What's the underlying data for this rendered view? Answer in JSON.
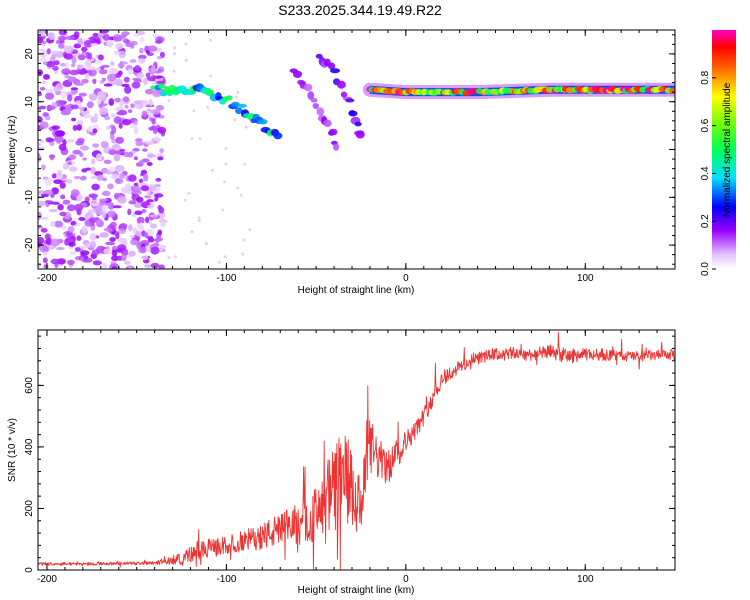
{
  "figure_title": "S233.2025.344.19.49.R22",
  "chart_data": [
    {
      "type": "heatmap",
      "title": "S233.2025.344.19.49.R22",
      "xlabel": "Height of straight line (km)",
      "ylabel": "Frequency (Hz)",
      "xlim": [
        -205,
        150
      ],
      "ylim": [
        -25,
        25
      ],
      "xticks": [
        -200,
        -100,
        0,
        100
      ],
      "yticks": [
        -20,
        -10,
        0,
        10,
        20
      ],
      "colorbar": {
        "label": "Normalized spectral amplitude",
        "range": [
          0.0,
          1.0
        ],
        "ticks": [
          "0.0",
          "0.2",
          "0.4",
          "0.6",
          "0.8"
        ],
        "tick_values": [
          0.0,
          0.2,
          0.4,
          0.6,
          0.8
        ]
      },
      "features": [
        {
          "name": "low-altitude noise cloud",
          "x_range": [
            -205,
            -135
          ],
          "y_range": [
            -25,
            25
          ],
          "amplitude": 0.12
        },
        {
          "name": "descending chirp",
          "points": [
            [
              -140,
              12.5
            ],
            [
              -125,
              12.5
            ],
            [
              -110,
              12
            ],
            [
              -100,
              10.5
            ],
            [
              -90,
              8
            ],
            [
              -80,
              5.5
            ],
            [
              -70,
              2
            ]
          ],
          "amplitude": 0.42
        },
        {
          "name": "ascending trace A",
          "points": [
            [
              -62,
              16
            ],
            [
              -55,
              13
            ],
            [
              -48,
              8
            ],
            [
              -42,
              4
            ],
            [
              -38,
              0
            ]
          ],
          "amplitude": 0.18
        },
        {
          "name": "ascending trace B",
          "points": [
            [
              -48,
              20
            ],
            [
              -40,
              16
            ],
            [
              -33,
              11
            ],
            [
              -28,
              6
            ],
            [
              -24,
              2
            ]
          ],
          "amplitude": 0.2
        },
        {
          "name": "steady carrier line",
          "points": [
            [
              -20,
              12.5
            ],
            [
              0,
              12
            ],
            [
              40,
              12
            ],
            [
              80,
              12.5
            ],
            [
              150,
              12.5
            ]
          ],
          "amplitude": 0.85
        }
      ]
    },
    {
      "type": "line",
      "xlabel": "Height of straight line (km)",
      "ylabel": "SNR (10 * v/v)",
      "xlim": [
        -205,
        150
      ],
      "ylim": [
        0,
        780
      ],
      "xticks": [
        -200,
        -100,
        0,
        100
      ],
      "yticks": [
        0,
        200,
        400,
        600
      ],
      "color": "#ee3333",
      "series": [
        {
          "name": "SNR",
          "x": [
            -205,
            -180,
            -150,
            -135,
            -125,
            -115,
            -110,
            -100,
            -90,
            -80,
            -70,
            -60,
            -50,
            -45,
            -40,
            -35,
            -30,
            -25,
            -20,
            -15,
            -10,
            -5,
            0,
            5,
            10,
            15,
            20,
            25,
            30,
            40,
            50,
            60,
            70,
            80,
            90,
            100,
            110,
            120,
            130,
            150
          ],
          "y": [
            20,
            20,
            22,
            25,
            40,
            60,
            70,
            80,
            95,
            110,
            130,
            150,
            180,
            210,
            260,
            300,
            250,
            200,
            400,
            360,
            330,
            380,
            420,
            450,
            500,
            560,
            620,
            640,
            660,
            690,
            700,
            705,
            700,
            710,
            695,
            700,
            700,
            695,
            695,
            700
          ],
          "spread": [
            10,
            10,
            10,
            15,
            45,
            60,
            60,
            60,
            70,
            90,
            110,
            140,
            180,
            220,
            300,
            360,
            280,
            200,
            200,
            140,
            110,
            110,
            70,
            60,
            60,
            60,
            55,
            50,
            45,
            40,
            40,
            40,
            40,
            45,
            50,
            40,
            40,
            35,
            35,
            35
          ]
        }
      ]
    }
  ]
}
